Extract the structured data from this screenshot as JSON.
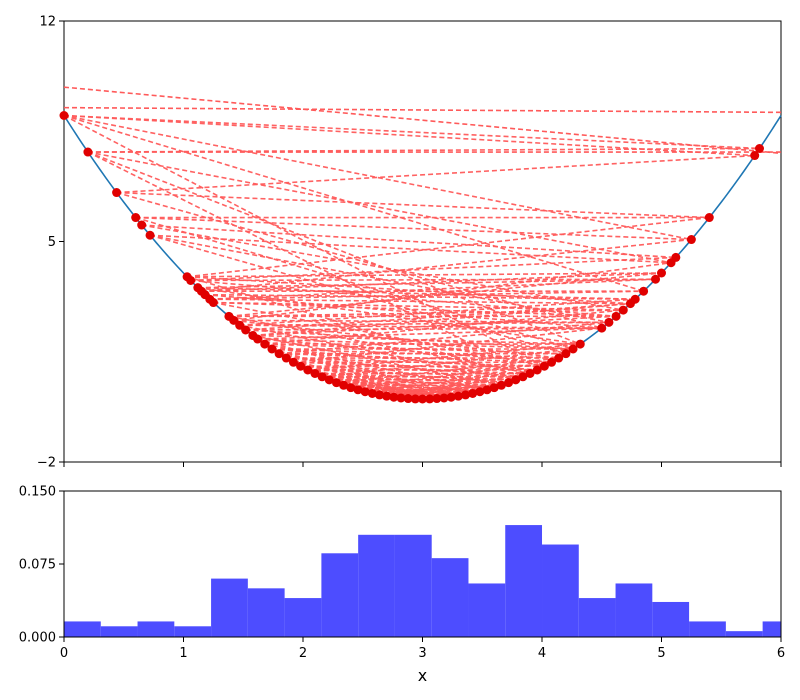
{
  "chart_data": [
    {
      "panel": "top",
      "type": "line",
      "curve": {
        "function": "y = (x - 3)^2",
        "x_range": [
          0,
          6
        ],
        "color": "#1f77b4"
      },
      "x_domain": [
        0,
        6
      ],
      "ylim": [
        -2,
        12
      ],
      "y_ticks": [
        -2,
        5,
        12
      ],
      "grid": false,
      "point_color": "#e00000",
      "chord_color": "#ff5a5a",
      "chord_style": "dashed",
      "points": [
        {
          "x": 0.0,
          "y": 9.0
        },
        {
          "x": 0.2,
          "y": 7.84
        },
        {
          "x": 0.44,
          "y": 6.55
        },
        {
          "x": 0.6,
          "y": 5.76
        },
        {
          "x": 0.65,
          "y": 5.52
        },
        {
          "x": 0.72,
          "y": 5.2
        },
        {
          "x": 1.03,
          "y": 3.88
        },
        {
          "x": 1.06,
          "y": 3.76
        },
        {
          "x": 1.12,
          "y": 3.53
        },
        {
          "x": 1.15,
          "y": 3.42
        },
        {
          "x": 1.18,
          "y": 3.31
        },
        {
          "x": 1.22,
          "y": 3.17
        },
        {
          "x": 1.25,
          "y": 3.06
        },
        {
          "x": 1.38,
          "y": 2.62
        },
        {
          "x": 1.42,
          "y": 2.5
        },
        {
          "x": 1.47,
          "y": 2.34
        },
        {
          "x": 1.52,
          "y": 2.19
        },
        {
          "x": 1.58,
          "y": 2.02
        },
        {
          "x": 1.62,
          "y": 1.9
        },
        {
          "x": 1.68,
          "y": 1.74
        },
        {
          "x": 1.74,
          "y": 1.59
        },
        {
          "x": 1.8,
          "y": 1.44
        },
        {
          "x": 1.86,
          "y": 1.3
        },
        {
          "x": 1.92,
          "y": 1.17
        },
        {
          "x": 1.98,
          "y": 1.04
        },
        {
          "x": 2.04,
          "y": 0.92
        },
        {
          "x": 2.1,
          "y": 0.81
        },
        {
          "x": 2.16,
          "y": 0.71
        },
        {
          "x": 2.22,
          "y": 0.61
        },
        {
          "x": 2.28,
          "y": 0.52
        },
        {
          "x": 2.34,
          "y": 0.44
        },
        {
          "x": 2.4,
          "y": 0.36
        },
        {
          "x": 2.46,
          "y": 0.29
        },
        {
          "x": 2.52,
          "y": 0.23
        },
        {
          "x": 2.58,
          "y": 0.18
        },
        {
          "x": 2.64,
          "y": 0.13
        },
        {
          "x": 2.7,
          "y": 0.09
        },
        {
          "x": 2.76,
          "y": 0.06
        },
        {
          "x": 2.82,
          "y": 0.03
        },
        {
          "x": 2.88,
          "y": 0.01
        },
        {
          "x": 2.94,
          "y": 0.0
        },
        {
          "x": 3.0,
          "y": 0.0
        },
        {
          "x": 3.06,
          "y": 0.0
        },
        {
          "x": 3.12,
          "y": 0.01
        },
        {
          "x": 3.18,
          "y": 0.03
        },
        {
          "x": 3.24,
          "y": 0.06
        },
        {
          "x": 3.3,
          "y": 0.09
        },
        {
          "x": 3.36,
          "y": 0.13
        },
        {
          "x": 3.42,
          "y": 0.18
        },
        {
          "x": 3.48,
          "y": 0.23
        },
        {
          "x": 3.54,
          "y": 0.29
        },
        {
          "x": 3.6,
          "y": 0.36
        },
        {
          "x": 3.66,
          "y": 0.44
        },
        {
          "x": 3.72,
          "y": 0.52
        },
        {
          "x": 3.78,
          "y": 0.61
        },
        {
          "x": 3.84,
          "y": 0.71
        },
        {
          "x": 3.9,
          "y": 0.81
        },
        {
          "x": 3.96,
          "y": 0.92
        },
        {
          "x": 4.02,
          "y": 1.04
        },
        {
          "x": 4.08,
          "y": 1.17
        },
        {
          "x": 4.14,
          "y": 1.3
        },
        {
          "x": 4.2,
          "y": 1.44
        },
        {
          "x": 4.26,
          "y": 1.59
        },
        {
          "x": 4.32,
          "y": 1.74
        },
        {
          "x": 4.5,
          "y": 2.25
        },
        {
          "x": 4.56,
          "y": 2.43
        },
        {
          "x": 4.62,
          "y": 2.62
        },
        {
          "x": 4.68,
          "y": 2.82
        },
        {
          "x": 4.74,
          "y": 3.03
        },
        {
          "x": 4.78,
          "y": 3.17
        },
        {
          "x": 4.85,
          "y": 3.42
        },
        {
          "x": 4.95,
          "y": 3.8
        },
        {
          "x": 5.0,
          "y": 4.0
        },
        {
          "x": 5.08,
          "y": 4.33
        },
        {
          "x": 5.12,
          "y": 4.49
        },
        {
          "x": 5.25,
          "y": 5.06
        },
        {
          "x": 5.4,
          "y": 5.76
        },
        {
          "x": 5.78,
          "y": 7.73
        },
        {
          "x": 5.82,
          "y": 7.95
        }
      ],
      "chords": [
        [
          0.0,
          5.82
        ],
        [
          0.0,
          5.78
        ],
        [
          0.2,
          5.82
        ],
        [
          0.44,
          5.4
        ],
        [
          0.6,
          5.25
        ],
        [
          0.65,
          5.12
        ],
        [
          0.72,
          5.08
        ],
        [
          1.03,
          5.0
        ],
        [
          1.06,
          4.95
        ],
        [
          0.0,
          4.85
        ],
        [
          0.2,
          4.32
        ],
        [
          0.44,
          4.5
        ],
        [
          0.6,
          4.26
        ],
        [
          1.12,
          4.78
        ],
        [
          1.15,
          5.25
        ],
        [
          1.22,
          4.74
        ],
        [
          1.25,
          4.68
        ],
        [
          1.38,
          4.62
        ],
        [
          1.42,
          5.08
        ],
        [
          1.47,
          4.56
        ],
        [
          0.0,
          4.02
        ],
        [
          0.2,
          3.9
        ],
        [
          0.72,
          4.2
        ],
        [
          1.03,
          3.84
        ],
        [
          1.52,
          4.5
        ],
        [
          1.58,
          4.32
        ],
        [
          1.62,
          4.26
        ],
        [
          1.68,
          4.2
        ],
        [
          1.74,
          4.14
        ],
        [
          1.8,
          4.08
        ],
        [
          1.86,
          4.02
        ],
        [
          1.92,
          3.96
        ],
        [
          1.98,
          3.9
        ],
        [
          2.04,
          3.84
        ],
        [
          2.1,
          3.78
        ],
        [
          2.16,
          3.72
        ],
        [
          2.22,
          3.66
        ],
        [
          2.28,
          3.6
        ],
        [
          2.34,
          3.54
        ],
        [
          2.4,
          3.48
        ],
        [
          2.46,
          3.42
        ],
        [
          2.52,
          3.36
        ],
        [
          2.58,
          3.3
        ],
        [
          2.64,
          3.24
        ],
        [
          2.7,
          3.18
        ],
        [
          2.76,
          3.12
        ],
        [
          2.82,
          3.06
        ],
        [
          2.88,
          3.0
        ],
        [
          1.06,
          4.62
        ],
        [
          1.12,
          4.32
        ],
        [
          1.18,
          4.5
        ],
        [
          1.25,
          4.02
        ],
        [
          1.38,
          3.9
        ],
        [
          1.42,
          4.14
        ],
        [
          1.47,
          3.78
        ],
        [
          1.52,
          4.26
        ],
        [
          1.58,
          3.66
        ],
        [
          1.62,
          4.08
        ],
        [
          1.68,
          3.54
        ],
        [
          1.74,
          3.96
        ],
        [
          1.8,
          3.42
        ],
        [
          1.86,
          3.84
        ],
        [
          1.92,
          3.3
        ],
        [
          1.98,
          3.72
        ],
        [
          2.04,
          3.18
        ],
        [
          2.1,
          3.6
        ],
        [
          2.16,
          3.06
        ],
        [
          2.22,
          3.48
        ],
        [
          2.28,
          3.0
        ],
        [
          2.34,
          3.36
        ],
        [
          1.15,
          5.0
        ],
        [
          1.22,
          4.85
        ],
        [
          1.03,
          4.74
        ],
        [
          1.06,
          5.12
        ],
        [
          0.65,
          4.68
        ],
        [
          0.72,
          4.56
        ],
        [
          1.12,
          4.95
        ],
        [
          1.18,
          4.78
        ],
        [
          1.25,
          4.62
        ],
        [
          1.38,
          4.68
        ],
        [
          1.42,
          4.56
        ],
        [
          1.47,
          4.5
        ],
        [
          1.52,
          4.74
        ],
        [
          1.58,
          4.62
        ],
        [
          1.62,
          4.5
        ],
        [
          1.68,
          4.32
        ],
        [
          1.74,
          4.26
        ],
        [
          1.8,
          4.2
        ],
        [
          1.86,
          4.14
        ],
        [
          1.92,
          4.08
        ],
        [
          1.98,
          4.02
        ],
        [
          2.04,
          3.96
        ],
        [
          2.1,
          3.9
        ],
        [
          2.16,
          3.84
        ],
        [
          2.22,
          3.78
        ],
        [
          2.28,
          3.72
        ],
        [
          2.34,
          3.66
        ],
        [
          2.4,
          3.6
        ],
        [
          2.46,
          3.54
        ],
        [
          2.52,
          3.48
        ],
        [
          2.58,
          3.42
        ],
        [
          2.64,
          3.36
        ],
        [
          2.7,
          3.3
        ],
        [
          2.76,
          3.24
        ],
        [
          2.82,
          3.18
        ],
        [
          0.44,
          5.78
        ],
        [
          0.6,
          5.4
        ],
        [
          0.0,
          5.25
        ],
        [
          0.2,
          5.08
        ],
        [
          1.03,
          5.4
        ],
        [
          1.15,
          4.85
        ],
        [
          1.22,
          4.95
        ],
        [
          1.38,
          5.0
        ],
        [
          1.47,
          4.78
        ],
        [
          1.58,
          4.74
        ],
        [
          1.68,
          4.68
        ],
        [
          1.8,
          4.56
        ],
        [
          1.92,
          4.5
        ],
        [
          2.04,
          4.32
        ],
        [
          2.16,
          4.26
        ],
        [
          2.28,
          4.14
        ],
        [
          2.4,
          4.08
        ],
        [
          2.52,
          3.96
        ],
        [
          2.64,
          3.84
        ],
        [
          2.76,
          3.72
        ],
        [
          2.88,
          3.6
        ],
        [
          2.94,
          3.48
        ],
        [
          3.0,
          3.36
        ],
        [
          3.06,
          3.54
        ],
        [
          3.12,
          3.42
        ],
        [
          1.62,
          3.3
        ],
        [
          1.74,
          3.18
        ],
        [
          1.86,
          3.06
        ],
        [
          1.98,
          3.0
        ],
        [
          2.1,
          3.12
        ],
        [
          2.22,
          3.24
        ],
        [
          2.34,
          2.94
        ],
        [
          2.46,
          3.3
        ],
        [
          2.58,
          3.66
        ],
        [
          2.7,
          3.9
        ]
      ]
    },
    {
      "panel": "bottom",
      "type": "bar",
      "xlabel": "x",
      "xlim": [
        0,
        6
      ],
      "ylim": [
        0,
        0.15
      ],
      "x_ticks": [
        0,
        1,
        2,
        3,
        4,
        5,
        6
      ],
      "y_ticks": [
        "0.000",
        "0.075",
        "0.150"
      ],
      "bar_color": "#4d4dff",
      "bin_width": 0.3077,
      "values": [
        0.016,
        0.011,
        0.016,
        0.011,
        0.06,
        0.05,
        0.04,
        0.086,
        0.105,
        0.105,
        0.081,
        0.055,
        0.115,
        0.095,
        0.04,
        0.055,
        0.036,
        0.016,
        0.006,
        0.016
      ]
    }
  ]
}
